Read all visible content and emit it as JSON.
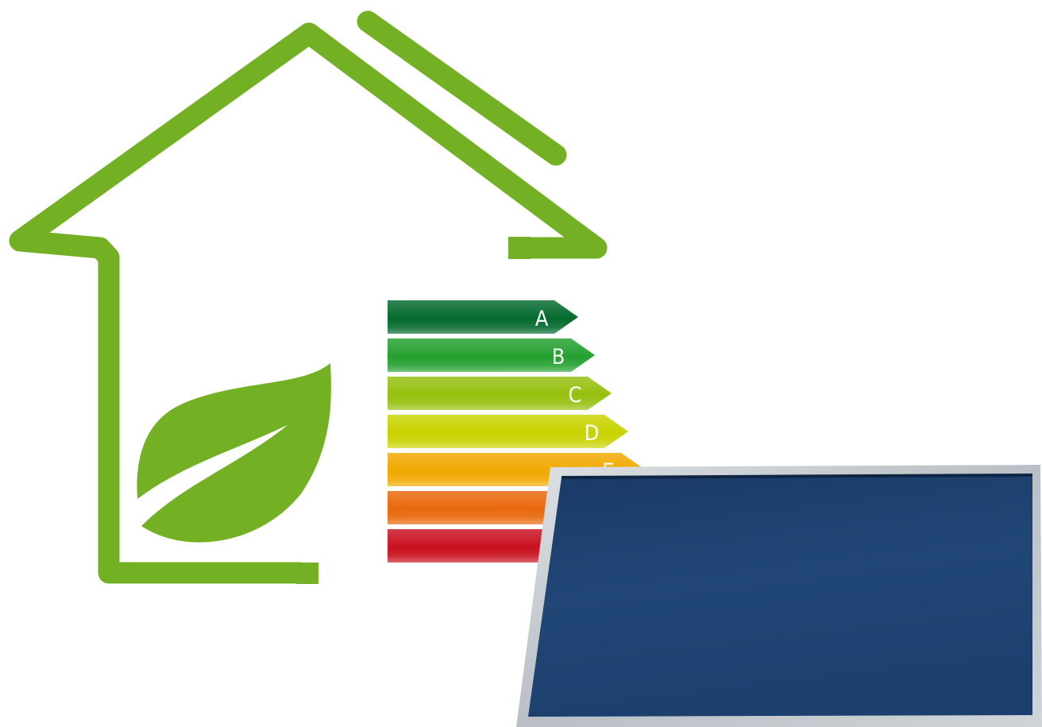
{
  "colors": {
    "house_green": "#74b024",
    "leaf_green": "#74b024",
    "panel_frame": "#c7ccd0",
    "panel_glass": "#1f4270"
  },
  "icons": {
    "house": "house-outline-icon",
    "leaf": "leaf-icon",
    "panel": "solar-panel"
  },
  "energy_label": {
    "classes": [
      {
        "letter": "A",
        "color": "#046a2e"
      },
      {
        "letter": "B",
        "color": "#25a030"
      },
      {
        "letter": "C",
        "color": "#96c00e"
      },
      {
        "letter": "D",
        "color": "#c9d300"
      },
      {
        "letter": "E",
        "color": "#f2a900"
      },
      {
        "letter": "",
        "color": "#e8680b"
      },
      {
        "letter": "",
        "color": "#c9101f"
      }
    ]
  }
}
